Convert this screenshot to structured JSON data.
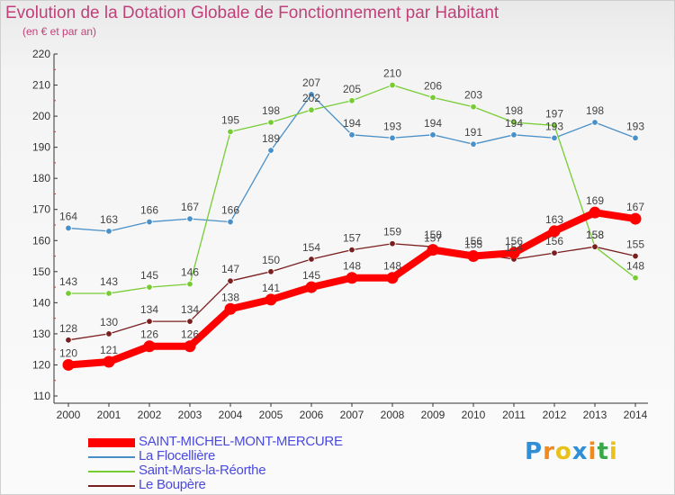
{
  "title": "Evolution de la Dotation Globale de Fonctionnement par Habitant",
  "subtitle": "(en € et par an)",
  "logo": {
    "text": "Proxiti",
    "colors": [
      "#2e8fd6",
      "#f08a1c",
      "#e8c21a",
      "#2e8fd6",
      "#f08a1c",
      "#3aa84a",
      "#e8c21a"
    ]
  },
  "chart_data": {
    "type": "line",
    "x": [
      "2000",
      "2001",
      "2002",
      "2003",
      "2004",
      "2005",
      "2006",
      "2007",
      "2008",
      "2009",
      "2010",
      "2011",
      "2012",
      "2013",
      "2014"
    ],
    "ylim": [
      110,
      220
    ],
    "yticks": [
      "110",
      "120",
      "130",
      "140",
      "150",
      "160",
      "170",
      "180",
      "190",
      "200",
      "210",
      "220"
    ],
    "grid": false,
    "legend_position": "bottom-left",
    "series": [
      {
        "name": "SAINT-MICHEL-MONT-MERCURE",
        "color": "#ff0000",
        "values": [
          120,
          121,
          126,
          126,
          138,
          141,
          145,
          148,
          148,
          157,
          155,
          156,
          163,
          169,
          167
        ],
        "labels": [
          "120",
          "121",
          "126",
          "126",
          "138",
          "141",
          "145",
          "148",
          "148",
          "157",
          "155",
          "156",
          "163",
          "169",
          "167"
        ]
      },
      {
        "name": "La Flocellière",
        "color": "#4a90c8",
        "values": [
          164,
          163,
          166,
          167,
          166,
          189,
          207,
          194,
          193,
          194,
          191,
          194,
          193,
          198,
          193
        ],
        "labels": [
          "164",
          "163",
          "166",
          "167",
          "166",
          "189",
          "207",
          "194",
          "193",
          "194",
          "191",
          "194",
          "193",
          "198",
          "193"
        ]
      },
      {
        "name": "Saint-Mars-la-Réorthe",
        "color": "#77cc33",
        "values": [
          143,
          143,
          145,
          146,
          195,
          198,
          202,
          205,
          210,
          206,
          203,
          198,
          197,
          158,
          148
        ],
        "labels": [
          "143",
          "143",
          "145",
          "146",
          "195",
          "198",
          "202",
          "205",
          "210",
          "206",
          "203",
          "198",
          "197",
          "158",
          "148"
        ]
      },
      {
        "name": "Le Boupère",
        "color": "#7a1f1f",
        "values": [
          128,
          130,
          134,
          134,
          147,
          150,
          154,
          157,
          159,
          158,
          156,
          154,
          156,
          158,
          155
        ],
        "labels": [
          "128",
          "130",
          "134",
          "134",
          "147",
          "150",
          "154",
          "157",
          "159",
          "158",
          "156",
          "154",
          "156",
          "158",
          "155"
        ]
      }
    ]
  }
}
